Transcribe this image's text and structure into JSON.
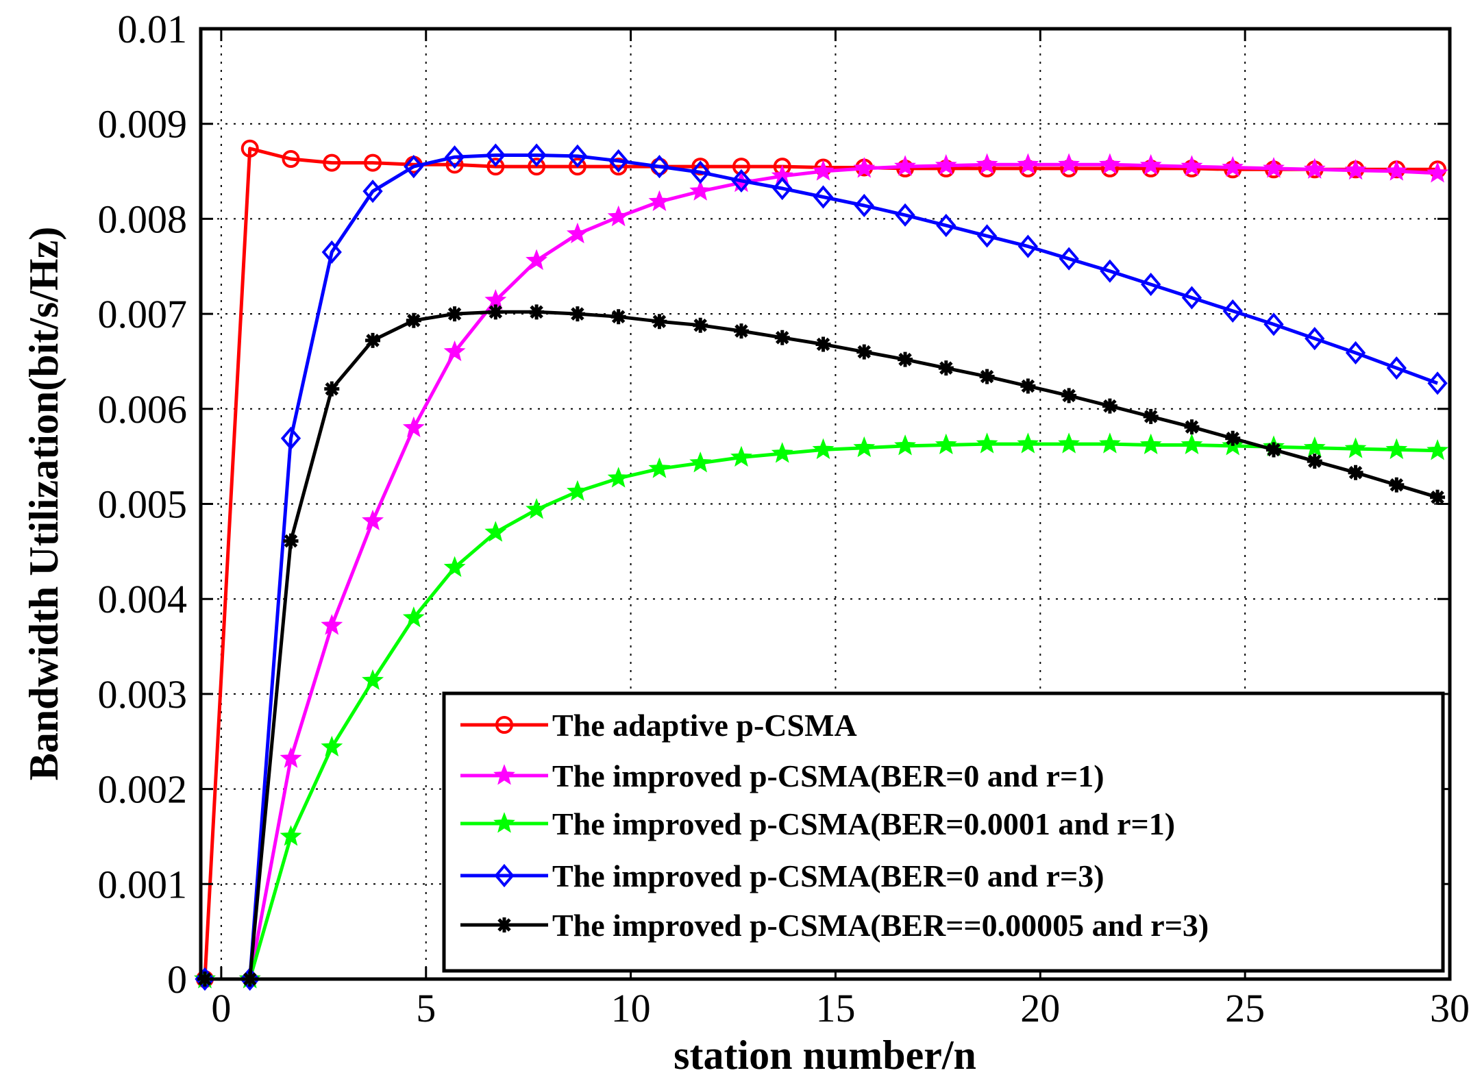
{
  "chart_data": {
    "type": "line",
    "title": "",
    "xlabel": "station number/n",
    "ylabel": "Bandwidth Utilization(bit/s/Hz)",
    "xlim": [
      -0.5,
      30
    ],
    "ylim": [
      0,
      0.01
    ],
    "xticks": [
      0,
      5,
      10,
      15,
      20,
      25,
      30
    ],
    "xtick_labels": [
      "0",
      "5",
      "10",
      "15",
      "20",
      "25",
      "30"
    ],
    "yticks": [
      0,
      0.001,
      0.002,
      0.003,
      0.004,
      0.005,
      0.006,
      0.007,
      0.008,
      0.009,
      0.01
    ],
    "ytick_labels": [
      "0",
      "0.001",
      "0.002",
      "0.003",
      "0.004",
      "0.005",
      "0.006",
      "0.007",
      "0.008",
      "0.009",
      "0.01"
    ],
    "grid": true,
    "legend_position": "bottom-right",
    "x": [
      -0.4,
      0.7,
      1.7,
      2.7,
      3.7,
      4.7,
      5.7,
      6.7,
      7.7,
      8.7,
      9.7,
      10.7,
      11.7,
      12.7,
      13.7,
      14.7,
      15.7,
      16.7,
      17.7,
      18.7,
      19.7,
      20.7,
      21.7,
      22.7,
      23.7,
      24.7,
      25.7,
      26.7,
      27.7,
      28.7,
      29.7
    ],
    "series": [
      {
        "name": "The adaptive p-CSMA",
        "color": "#ff0000",
        "marker": "circle",
        "values": [
          0,
          0.00874,
          0.00863,
          0.00859,
          0.00859,
          0.00857,
          0.00857,
          0.00855,
          0.00855,
          0.00855,
          0.00855,
          0.00855,
          0.00855,
          0.00855,
          0.00855,
          0.00854,
          0.00854,
          0.00853,
          0.00853,
          0.00853,
          0.00853,
          0.00853,
          0.00853,
          0.00853,
          0.00853,
          0.00852,
          0.00852,
          0.00852,
          0.00852,
          0.00852,
          0.00852
        ]
      },
      {
        "name": "The improved p-CSMA(BER=0 and r=1)",
        "color": "#ff00ff",
        "marker": "star",
        "values": [
          0,
          0,
          0.00232,
          0.00372,
          0.00482,
          0.0058,
          0.0066,
          0.00714,
          0.00756,
          0.00784,
          0.00802,
          0.00818,
          0.00829,
          0.00838,
          0.00845,
          0.0085,
          0.00853,
          0.00855,
          0.00856,
          0.00857,
          0.00857,
          0.00857,
          0.00857,
          0.00856,
          0.00855,
          0.00854,
          0.00853,
          0.00852,
          0.00851,
          0.0085,
          0.00848
        ]
      },
      {
        "name": "The improved p-CSMA(BER=0.0001 and r=1)",
        "color": "#00ff00",
        "marker": "star",
        "values": [
          0,
          0,
          0.0015,
          0.00244,
          0.00314,
          0.0038,
          0.00433,
          0.0047,
          0.00494,
          0.00513,
          0.00527,
          0.00537,
          0.00543,
          0.00549,
          0.00553,
          0.00557,
          0.00559,
          0.00561,
          0.00562,
          0.00563,
          0.00563,
          0.00563,
          0.00563,
          0.00562,
          0.00562,
          0.00561,
          0.0056,
          0.00559,
          0.00558,
          0.00557,
          0.00556
        ]
      },
      {
        "name": "The improved p-CSMA(BER=0 and r=3)",
        "color": "#0000ff",
        "marker": "diamond",
        "values": [
          0,
          0,
          0.00569,
          0.00765,
          0.00829,
          0.00855,
          0.00865,
          0.00867,
          0.00867,
          0.00866,
          0.00861,
          0.00855,
          0.00849,
          0.0084,
          0.00832,
          0.00823,
          0.00814,
          0.00804,
          0.00793,
          0.00782,
          0.00771,
          0.00758,
          0.00745,
          0.00731,
          0.00717,
          0.00703,
          0.00689,
          0.00674,
          0.00659,
          0.00643,
          0.00627
        ]
      },
      {
        "name": "The improved p-CSMA(BER==0.00005 and r=3)",
        "color": "#000000",
        "marker": "plus",
        "values": [
          0,
          0,
          0.00461,
          0.00621,
          0.00672,
          0.00693,
          0.007,
          0.00702,
          0.00702,
          0.007,
          0.00697,
          0.00692,
          0.00688,
          0.00682,
          0.00675,
          0.00668,
          0.0066,
          0.00652,
          0.00643,
          0.00634,
          0.00624,
          0.00614,
          0.00603,
          0.00592,
          0.00581,
          0.00569,
          0.00557,
          0.00545,
          0.00533,
          0.0052,
          0.00507
        ]
      }
    ]
  }
}
